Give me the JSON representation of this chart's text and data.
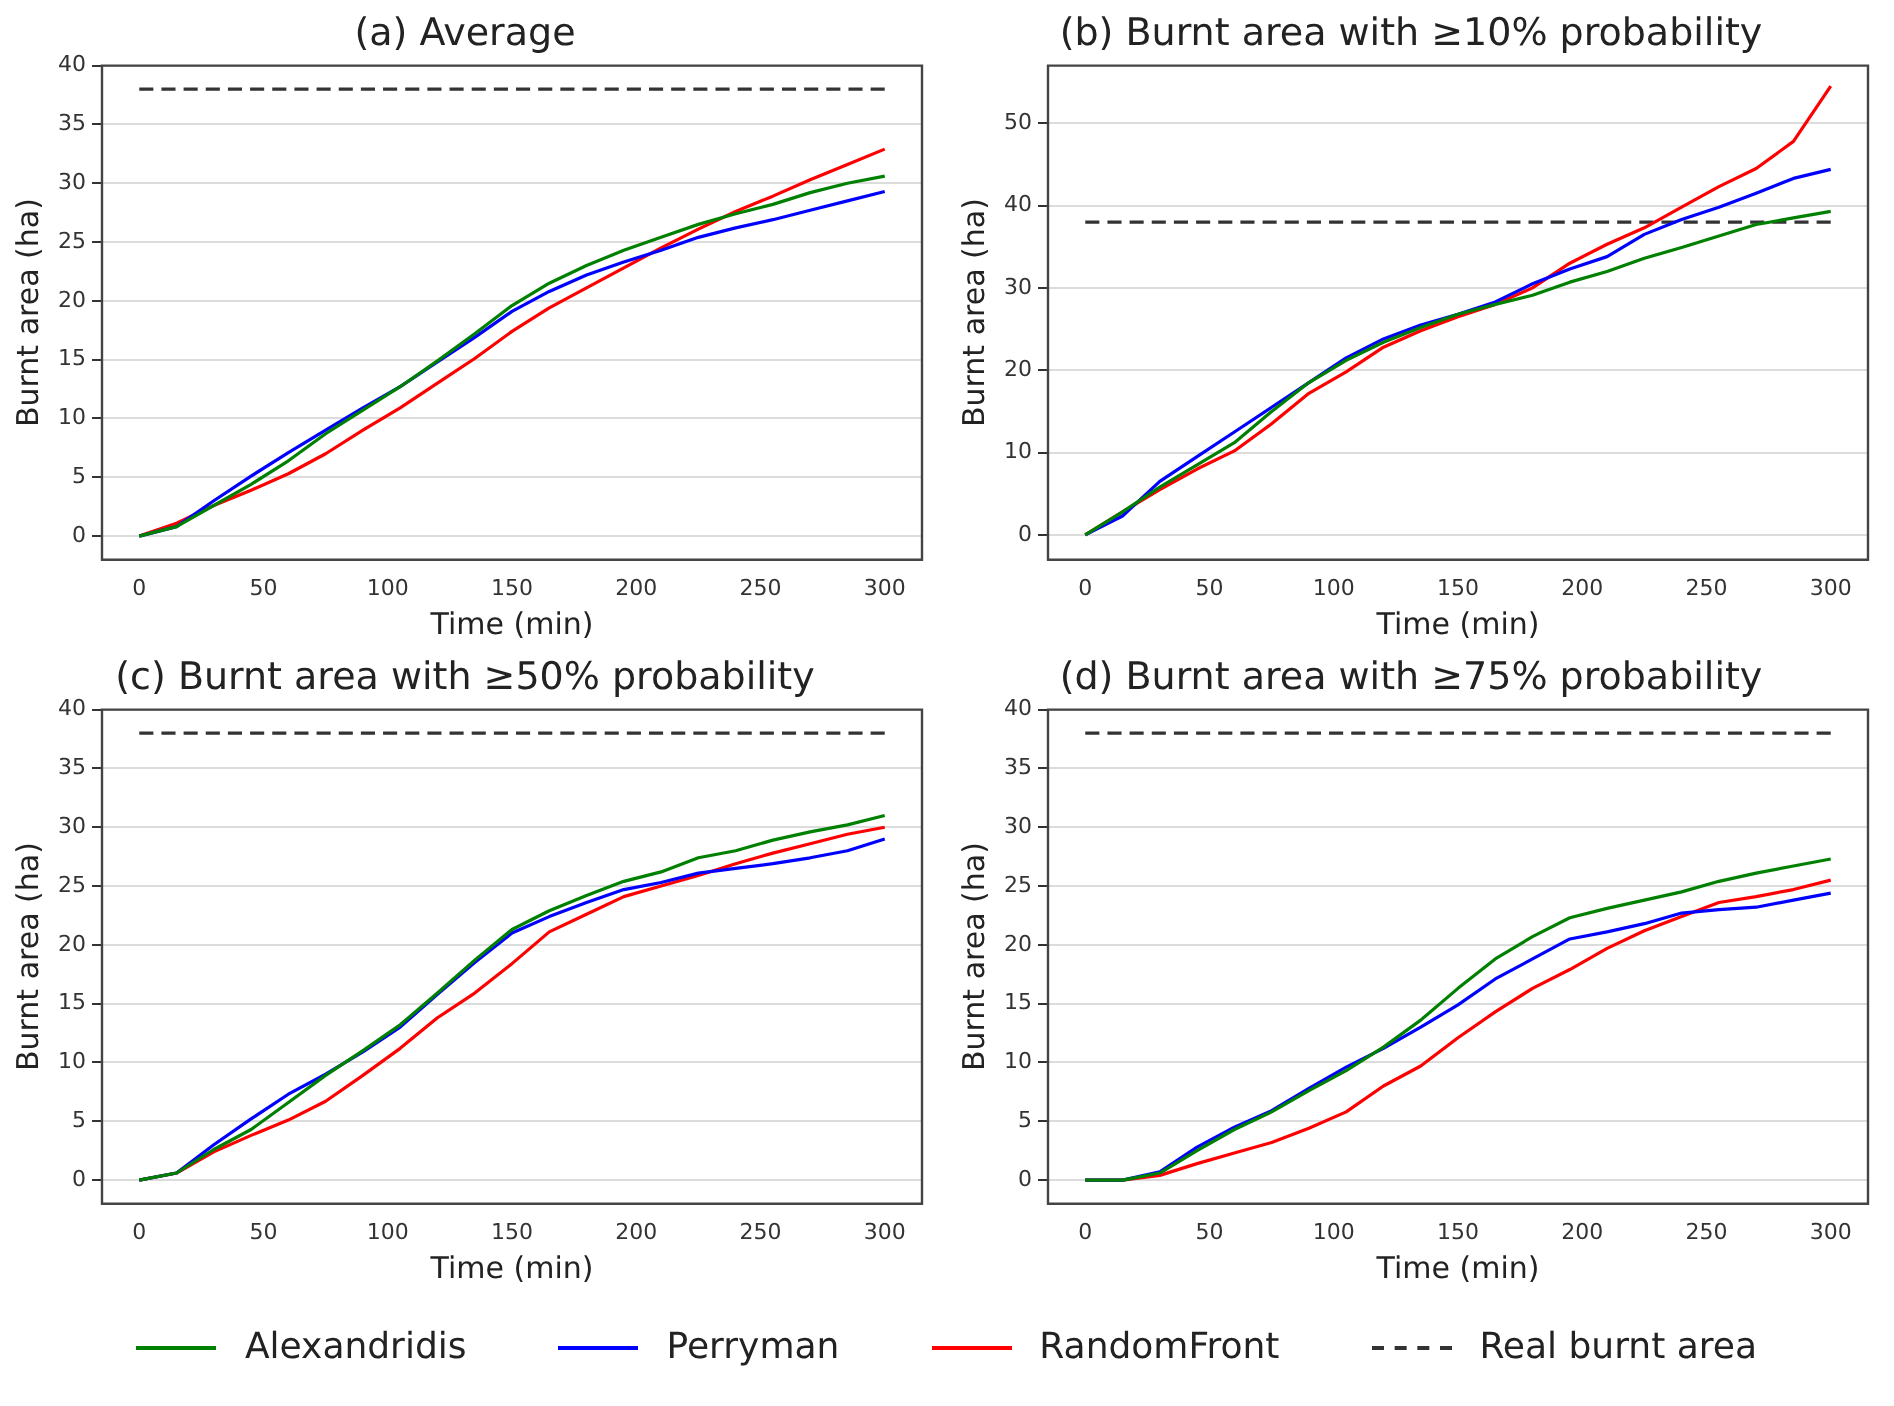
{
  "chart_data": [
    {
      "type": "line",
      "title": "(a) Average",
      "xlabel": "Time (min)",
      "ylabel": "Burnt area (ha)",
      "x": [
        0,
        15,
        30,
        45,
        60,
        75,
        90,
        105,
        120,
        135,
        150,
        165,
        180,
        195,
        210,
        225,
        240,
        255,
        270,
        285,
        300
      ],
      "xlim": [
        -15,
        315
      ],
      "xticks": [
        0,
        50,
        100,
        150,
        200,
        250,
        300
      ],
      "ylim": [
        -2,
        40
      ],
      "yticks": [
        0,
        5,
        10,
        15,
        20,
        25,
        30,
        35,
        40
      ],
      "grid": "y",
      "marker": "none",
      "legend": "bottom",
      "series": [
        {
          "name": "Alexandridis",
          "color": "#008000",
          "values": [
            0,
            0.8,
            2.6,
            4.4,
            6.4,
            8.7,
            10.7,
            12.7,
            14.9,
            17.2,
            19.6,
            21.5,
            23.0,
            24.3,
            25.4,
            26.5,
            27.4,
            28.2,
            29.2,
            30.0,
            30.6
          ]
        },
        {
          "name": "Perryman",
          "color": "#0000ff",
          "values": [
            0,
            0.8,
            3.0,
            5.1,
            7.1,
            9.0,
            10.9,
            12.7,
            14.8,
            16.9,
            19.1,
            20.8,
            22.2,
            23.3,
            24.3,
            25.4,
            26.2,
            26.9,
            27.7,
            28.5,
            29.3
          ]
        },
        {
          "name": "RandomFront",
          "color": "#ff0000",
          "values": [
            0,
            1.1,
            2.6,
            3.9,
            5.3,
            7.0,
            9.0,
            10.9,
            13.0,
            15.1,
            17.4,
            19.4,
            21.1,
            22.8,
            24.5,
            26.1,
            27.6,
            28.9,
            30.3,
            31.6,
            32.9
          ]
        },
        {
          "name": "Real burnt area",
          "color": "#333333",
          "line_style": "dashed",
          "values": [
            38,
            38,
            38,
            38,
            38,
            38,
            38,
            38,
            38,
            38,
            38,
            38,
            38,
            38,
            38,
            38,
            38,
            38,
            38,
            38,
            38
          ]
        }
      ]
    },
    {
      "type": "line",
      "title": "(b) Burnt area with ≥10% probability",
      "xlabel": "Time (min)",
      "ylabel": "Burnt area (ha)",
      "x": [
        0,
        15,
        30,
        45,
        60,
        75,
        90,
        105,
        120,
        135,
        150,
        165,
        180,
        195,
        210,
        225,
        240,
        255,
        270,
        285,
        300
      ],
      "xlim": [
        -15,
        315
      ],
      "xticks": [
        0,
        50,
        100,
        150,
        200,
        250,
        300
      ],
      "ylim": [
        -3,
        57
      ],
      "yticks": [
        0,
        10,
        20,
        30,
        40,
        50
      ],
      "grid": "y",
      "marker": "none",
      "series": [
        {
          "name": "Alexandridis",
          "color": "#008000",
          "values": [
            0,
            2.8,
            5.8,
            8.5,
            11.2,
            15,
            18.5,
            21.2,
            23.4,
            25.2,
            26.8,
            28,
            29.1,
            30.7,
            32,
            33.6,
            34.9,
            36.3,
            37.7,
            38.5,
            39.3
          ]
        },
        {
          "name": "Perryman",
          "color": "#0000ff",
          "values": [
            0,
            2.3,
            6.5,
            9.5,
            12.5,
            15.5,
            18.5,
            21.5,
            23.8,
            25.5,
            26.8,
            28.3,
            30.5,
            32.3,
            33.8,
            36.5,
            38.3,
            39.8,
            41.5,
            43.3,
            44.4
          ]
        },
        {
          "name": "RandomFront",
          "color": "#ff0000",
          "values": [
            0,
            2.8,
            5.5,
            8,
            10.2,
            13.5,
            17.2,
            19.8,
            22.8,
            24.8,
            26.5,
            28,
            30,
            33,
            35.3,
            37.3,
            39.8,
            42.3,
            44.5,
            47.8,
            54.5
          ]
        },
        {
          "name": "Real burnt area",
          "color": "#333333",
          "line_style": "dashed",
          "values": [
            38,
            38,
            38,
            38,
            38,
            38,
            38,
            38,
            38,
            38,
            38,
            38,
            38,
            38,
            38,
            38,
            38,
            38,
            38,
            38,
            38
          ]
        }
      ]
    },
    {
      "type": "line",
      "title": "(c) Burnt area with ≥50% probability",
      "xlabel": "Time (min)",
      "ylabel": "Burnt area (ha)",
      "x": [
        0,
        15,
        30,
        45,
        60,
        75,
        90,
        105,
        120,
        135,
        150,
        165,
        180,
        195,
        210,
        225,
        240,
        255,
        270,
        285,
        300
      ],
      "xlim": [
        -15,
        315
      ],
      "xticks": [
        0,
        50,
        100,
        150,
        200,
        250,
        300
      ],
      "ylim": [
        -2,
        40
      ],
      "yticks": [
        0,
        5,
        10,
        15,
        20,
        25,
        30,
        35,
        40
      ],
      "grid": "y",
      "marker": "none",
      "series": [
        {
          "name": "Alexandridis",
          "color": "#008000",
          "values": [
            0,
            0.6,
            2.6,
            4.3,
            6.6,
            8.9,
            11,
            13.2,
            15.9,
            18.7,
            21.3,
            22.9,
            24.2,
            25.4,
            26.2,
            27.4,
            28,
            28.9,
            29.6,
            30.2,
            31
          ]
        },
        {
          "name": "Perryman",
          "color": "#0000ff",
          "values": [
            0,
            0.6,
            3,
            5.2,
            7.3,
            9,
            10.9,
            13,
            15.8,
            18.5,
            21,
            22.4,
            23.6,
            24.7,
            25.3,
            26.1,
            26.5,
            26.9,
            27.4,
            28,
            29
          ]
        },
        {
          "name": "RandomFront",
          "color": "#ff0000",
          "values": [
            0,
            0.6,
            2.4,
            3.8,
            5.1,
            6.7,
            8.9,
            11.2,
            13.8,
            15.9,
            18.4,
            21.1,
            22.6,
            24.1,
            25,
            25.9,
            26.9,
            27.8,
            28.6,
            29.4,
            30
          ]
        },
        {
          "name": "Real burnt area",
          "color": "#333333",
          "line_style": "dashed",
          "values": [
            38,
            38,
            38,
            38,
            38,
            38,
            38,
            38,
            38,
            38,
            38,
            38,
            38,
            38,
            38,
            38,
            38,
            38,
            38,
            38,
            38
          ]
        }
      ]
    },
    {
      "type": "line",
      "title": "(d) Burnt area with ≥75% probability",
      "xlabel": "Time (min)",
      "ylabel": "Burnt area (ha)",
      "x": [
        0,
        15,
        30,
        45,
        60,
        75,
        90,
        105,
        120,
        135,
        150,
        165,
        180,
        195,
        210,
        225,
        240,
        255,
        270,
        285,
        300
      ],
      "xlim": [
        -15,
        315
      ],
      "xticks": [
        0,
        50,
        100,
        150,
        200,
        250,
        300
      ],
      "ylim": [
        -2,
        40
      ],
      "yticks": [
        0,
        5,
        10,
        15,
        20,
        25,
        30,
        35,
        40
      ],
      "grid": "y",
      "marker": "none",
      "series": [
        {
          "name": "Alexandridis",
          "color": "#008000",
          "values": [
            0,
            0,
            0.6,
            2.5,
            4.3,
            5.8,
            7.6,
            9.3,
            11.3,
            13.6,
            16.3,
            18.8,
            20.7,
            22.3,
            23.1,
            23.8,
            24.5,
            25.4,
            26.1,
            26.7,
            27.3
          ]
        },
        {
          "name": "Perryman",
          "color": "#0000ff",
          "values": [
            0,
            0,
            0.7,
            2.8,
            4.5,
            5.9,
            7.8,
            9.6,
            11.2,
            13,
            14.9,
            17.1,
            18.8,
            20.5,
            21.1,
            21.8,
            22.7,
            23,
            23.2,
            23.8,
            24.4
          ]
        },
        {
          "name": "RandomFront",
          "color": "#ff0000",
          "values": [
            0,
            0,
            0.4,
            1.4,
            2.3,
            3.2,
            4.4,
            5.8,
            8,
            9.7,
            12.1,
            14.3,
            16.3,
            17.9,
            19.7,
            21.2,
            22.4,
            23.6,
            24.1,
            24.7,
            25.5
          ]
        },
        {
          "name": "Real burnt area",
          "color": "#333333",
          "line_style": "dashed",
          "values": [
            38,
            38,
            38,
            38,
            38,
            38,
            38,
            38,
            38,
            38,
            38,
            38,
            38,
            38,
            38,
            38,
            38,
            38,
            38,
            38,
            38
          ]
        }
      ]
    }
  ]
}
